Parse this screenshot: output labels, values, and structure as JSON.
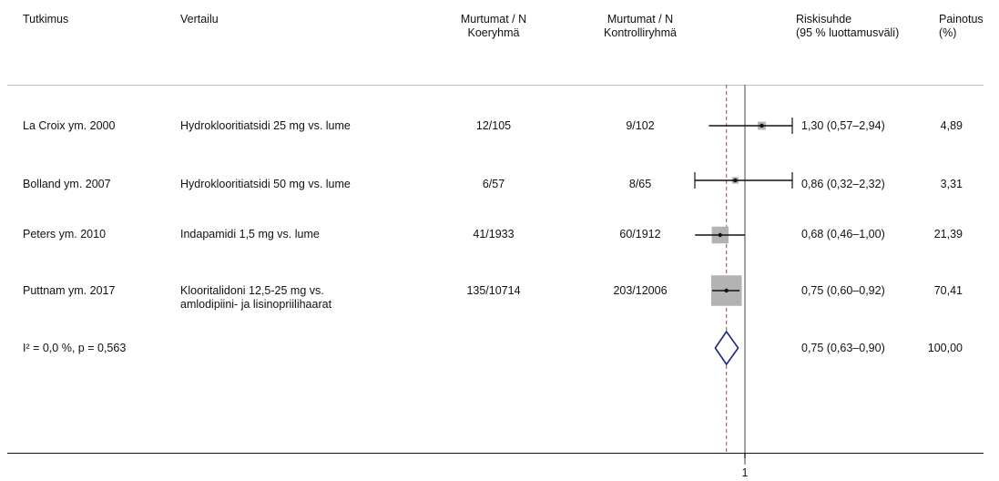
{
  "headers": {
    "study": "Tutkimus",
    "comparison": "Vertailu",
    "treat_l1": "Murtumat / N",
    "treat_l2": "Koeryhmä",
    "ctrl_l1": "Murtumat / N",
    "ctrl_l2": "Kontrolliryhmä",
    "rr_l1": "Riskisuhde",
    "rr_l2": "(95 % luottamusväli)",
    "w_l1": "Painotus",
    "w_l2": "(%)"
  },
  "rows": [
    {
      "study": "La Croix ym. 2000",
      "comparison": "Hydroklooritiatsidi 25 mg vs. lume",
      "comparison2": "",
      "treat": "12/105",
      "ctrl": "9/102",
      "rr_text": "1,30 (0,57–2,94)",
      "weight_text": "4,89"
    },
    {
      "study": "Bolland ym. 2007",
      "comparison": "Hydroklooritiatsidi 50 mg vs. lume",
      "comparison2": "",
      "treat": "6/57",
      "ctrl": "8/65",
      "rr_text": "0,86 (0,32–2,32)",
      "weight_text": "3,31"
    },
    {
      "study": "Peters ym. 2010",
      "comparison": "Indapamidi 1,5 mg vs. lume",
      "comparison2": "",
      "treat": "41/1933",
      "ctrl": "60/1912",
      "rr_text": "0,68 (0,46–1,00)",
      "weight_text": "21,39"
    },
    {
      "study": "Puttnam ym. 2017",
      "comparison": "Klooritalidoni 12,5-25 mg vs.",
      "comparison2": "amlodipiini- ja lisinopriilihaarat",
      "treat": "135/10714",
      "ctrl": "203/12006",
      "rr_text": "0,75 (0,60–0,92)",
      "weight_text": "70,41"
    }
  ],
  "summary": {
    "label": "I² = 0,0 %, p = 0,563",
    "rr_text": "0,75 (0,63–0,90)",
    "weight_text": "100,00"
  },
  "axis_tick_label": "1",
  "colors": {
    "square": "#b3b3b3",
    "diamond": "#1a237e",
    "pooled_line": "#c0392b",
    "null_line": "#8c8c8c"
  },
  "chart_data": {
    "type": "forest",
    "x_scale": "log",
    "null_value": 1,
    "x_ticks": [
      1
    ],
    "pooled_estimate": {
      "rr": 0.75,
      "lo": 0.63,
      "hi": 0.9
    },
    "studies": [
      {
        "rr": 1.3,
        "lo": 0.57,
        "hi": 2.94,
        "weight": 4.89
      },
      {
        "rr": 0.86,
        "lo": 0.32,
        "hi": 2.32,
        "weight": 3.31
      },
      {
        "rr": 0.68,
        "lo": 0.46,
        "hi": 1.0,
        "weight": 21.39
      },
      {
        "rr": 0.75,
        "lo": 0.6,
        "hi": 0.92,
        "weight": 70.41
      }
    ]
  }
}
